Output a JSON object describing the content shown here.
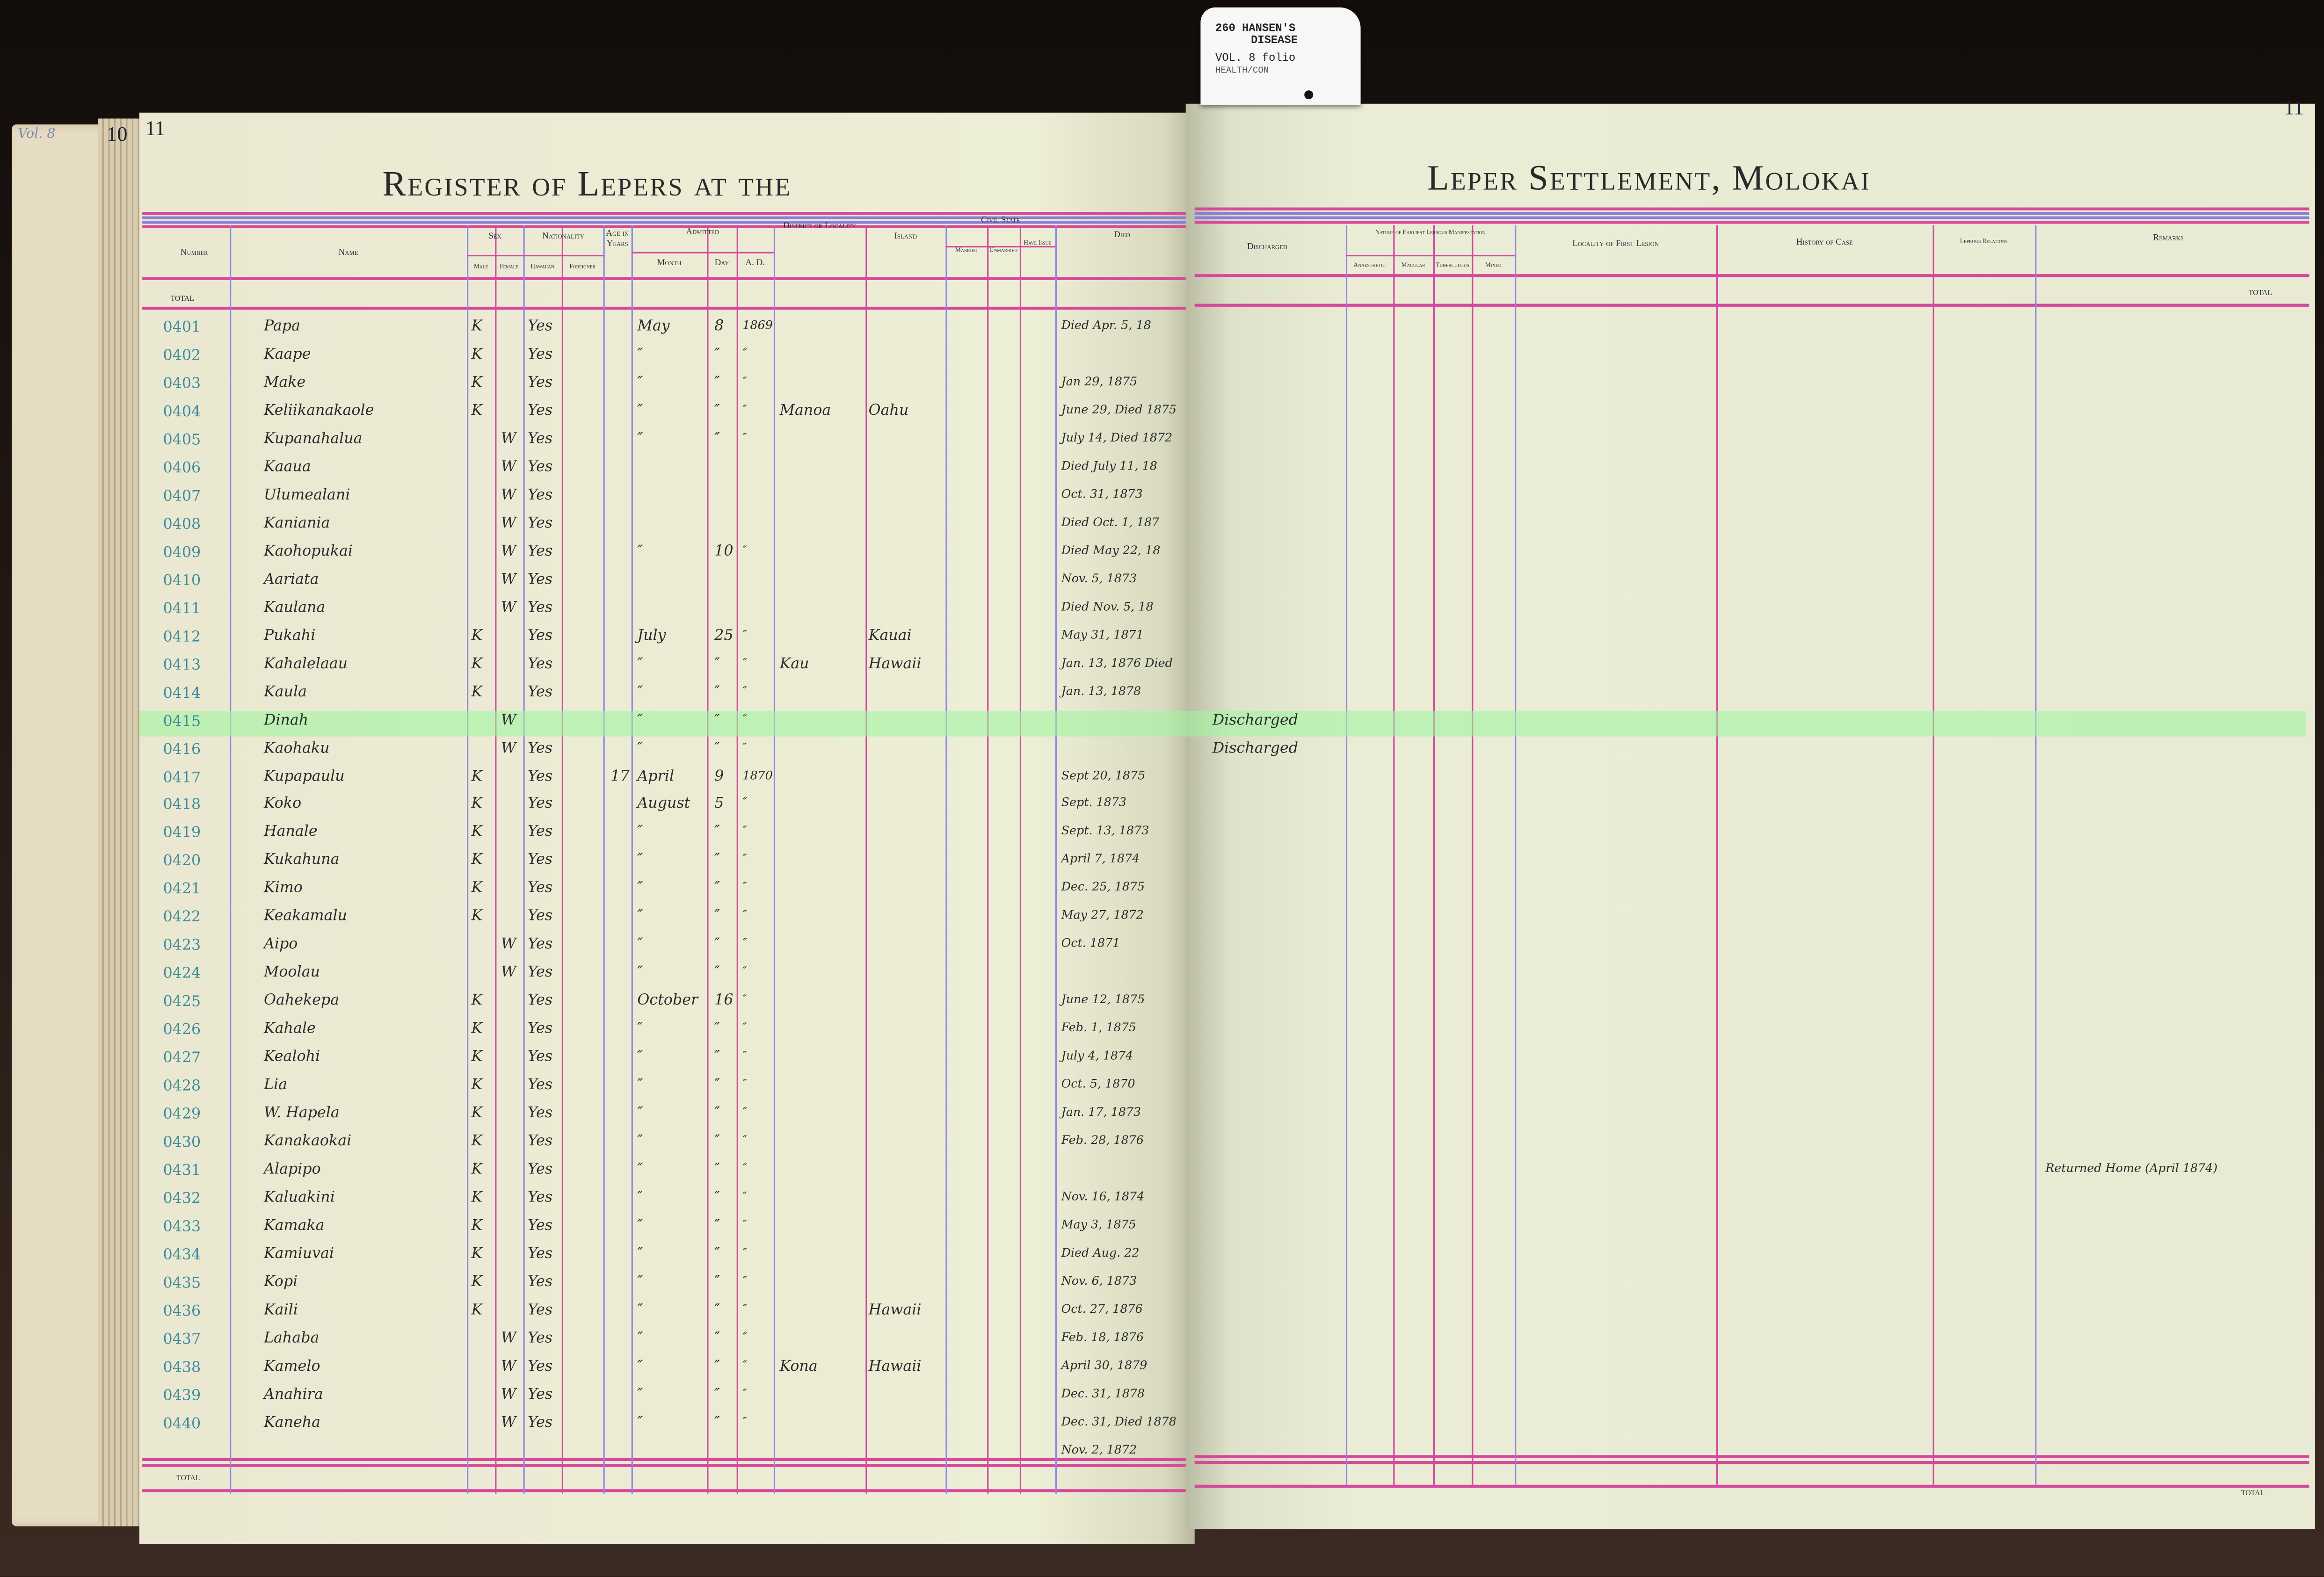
{
  "tag": {
    "line1": "260 HANSEN'S",
    "line2": "DISEASE",
    "line3": "VOL. 8 folio",
    "line4": "HEALTH/CON"
  },
  "volume_note": "Vol. 8",
  "page_numbers": {
    "previous": "10",
    "left": "11",
    "right": "11"
  },
  "titles": {
    "left": "Register of Lepers at the",
    "right": "Leper Settlement, Molokai"
  },
  "headers": {
    "number": "Number",
    "name": "Name",
    "sex": "Sex",
    "male": "Male",
    "female": "Female",
    "nationality": "Nationality",
    "hawaiian": "Hawaiian",
    "foreigner": "Foreigner",
    "age": "Age in Years",
    "admitted": "Admitted",
    "month": "Month",
    "day": "Day",
    "ad": "A. D.",
    "district": "District or Locality",
    "island": "Island",
    "civil_state": "Civil State",
    "married": "Married",
    "unmarried": "Unmarried",
    "have_issue": "Have Issue",
    "died": "Died",
    "discharged": "Discharged",
    "nature": "Nature of Earliest Leprous Manifestation",
    "anaesthetic": "Anaesthetic",
    "macular": "Macular",
    "tuberculous": "Tuberculous",
    "mixed": "Mixed",
    "locality_first_lesion": "Locality of First Lesion",
    "history": "History of Case",
    "leprous_relations": "Leprous Relations",
    "remarks": "Remarks"
  },
  "total_label": "TOTAL",
  "highlight_color": "#a0f5a0",
  "highlighted_row": "0415",
  "rows": [
    {
      "number": "0401",
      "name": "Papa",
      "male": "K",
      "female": "",
      "hawaiian": "Yes",
      "age": "",
      "month": "May",
      "day": "8",
      "ad": "1869",
      "district": "",
      "island": "",
      "died": "Died Apr. 5, 18",
      "discharged": "",
      "remarks": ""
    },
    {
      "number": "0402",
      "name": "Kaape",
      "male": "K",
      "female": "",
      "hawaiian": "Yes",
      "age": "",
      "month": "″",
      "day": "″",
      "ad": "″",
      "district": "",
      "island": "",
      "died": "",
      "discharged": "",
      "remarks": ""
    },
    {
      "number": "0403",
      "name": "Make",
      "male": "K",
      "female": "",
      "hawaiian": "Yes",
      "age": "",
      "month": "″",
      "day": "″",
      "ad": "″",
      "district": "",
      "island": "",
      "died": "Jan 29, 1875",
      "discharged": "",
      "remarks": ""
    },
    {
      "number": "0404",
      "name": "Keliikanakaole",
      "male": "K",
      "female": "",
      "hawaiian": "Yes",
      "age": "",
      "month": "″",
      "day": "″",
      "ad": "″",
      "district": "Manoa",
      "island": "Oahu",
      "died": "June 29, Died 1875",
      "discharged": "",
      "remarks": ""
    },
    {
      "number": "0405",
      "name": "Kupanahalua",
      "male": "",
      "female": "W",
      "hawaiian": "Yes",
      "age": "",
      "month": "″",
      "day": "″",
      "ad": "″",
      "district": "",
      "island": "",
      "died": "July 14, Died 1872",
      "discharged": "",
      "remarks": ""
    },
    {
      "number": "0406",
      "name": "Kaaua",
      "male": "",
      "female": "W",
      "hawaiian": "Yes",
      "age": "",
      "month": "",
      "day": "",
      "ad": "",
      "district": "",
      "island": "",
      "died": "Died July 11, 18",
      "discharged": "",
      "remarks": ""
    },
    {
      "number": "0407",
      "name": "Ulumealani",
      "male": "",
      "female": "W",
      "hawaiian": "Yes",
      "age": "",
      "month": "",
      "day": "",
      "ad": "",
      "district": "",
      "island": "",
      "died": "Oct. 31, 1873",
      "discharged": "",
      "remarks": ""
    },
    {
      "number": "0408",
      "name": "Kaniania",
      "male": "",
      "female": "W",
      "hawaiian": "Yes",
      "age": "",
      "month": "",
      "day": "",
      "ad": "",
      "district": "",
      "island": "",
      "died": "Died Oct. 1, 187",
      "discharged": "",
      "remarks": ""
    },
    {
      "number": "0409",
      "name": "Kaohopukai",
      "male": "",
      "female": "W",
      "hawaiian": "Yes",
      "age": "",
      "month": "″",
      "day": "10",
      "ad": "″",
      "district": "",
      "island": "",
      "died": "Died May 22, 18",
      "discharged": "",
      "remarks": ""
    },
    {
      "number": "0410",
      "name": "Aariata",
      "male": "",
      "female": "W",
      "hawaiian": "Yes",
      "age": "",
      "month": "",
      "day": "",
      "ad": "",
      "district": "",
      "island": "",
      "died": "Nov. 5, 1873",
      "discharged": "",
      "remarks": ""
    },
    {
      "number": "0411",
      "name": "Kaulana",
      "male": "",
      "female": "W",
      "hawaiian": "Yes",
      "age": "",
      "month": "",
      "day": "",
      "ad": "",
      "district": "",
      "island": "",
      "died": "Died Nov. 5, 18",
      "discharged": "",
      "remarks": ""
    },
    {
      "number": "0412",
      "name": "Pukahi",
      "male": "K",
      "female": "",
      "hawaiian": "Yes",
      "age": "",
      "month": "July",
      "day": "25",
      "ad": "″",
      "district": "",
      "island": "Kauai",
      "died": "May 31, 1871",
      "discharged": "",
      "remarks": ""
    },
    {
      "number": "0413",
      "name": "Kahalelaau",
      "male": "K",
      "female": "",
      "hawaiian": "Yes",
      "age": "",
      "month": "″",
      "day": "″",
      "ad": "″",
      "district": "Kau",
      "island": "Hawaii",
      "died": "Jan. 13, 1876 Died",
      "discharged": "",
      "remarks": ""
    },
    {
      "number": "0414",
      "name": "Kaula",
      "male": "K",
      "female": "",
      "hawaiian": "Yes",
      "age": "",
      "month": "″",
      "day": "″",
      "ad": "″",
      "district": "",
      "island": "",
      "died": "Jan. 13, 1878",
      "discharged": "",
      "remarks": ""
    },
    {
      "number": "0415",
      "name": "Dinah",
      "male": "",
      "female": "W",
      "hawaiian": "",
      "age": "",
      "month": "″",
      "day": "″",
      "ad": "″",
      "district": "",
      "island": "",
      "died": "",
      "discharged": "Discharged",
      "remarks": ""
    },
    {
      "number": "0416",
      "name": "Kaohaku",
      "male": "",
      "female": "W",
      "hawaiian": "Yes",
      "age": "",
      "month": "″",
      "day": "″",
      "ad": "″",
      "district": "",
      "island": "",
      "died": "",
      "discharged": "Discharged",
      "remarks": ""
    },
    {
      "number": "0417",
      "name": "Kupapaulu",
      "male": "K",
      "female": "",
      "hawaiian": "Yes",
      "age": "17",
      "month": "April",
      "day": "9",
      "ad": "1870",
      "district": "",
      "island": "",
      "died": "Sept 20, 1875",
      "discharged": "",
      "remarks": ""
    },
    {
      "number": "0418",
      "name": "Koko",
      "male": "K",
      "female": "",
      "hawaiian": "Yes",
      "age": "",
      "month": "August",
      "day": "5",
      "ad": "″",
      "district": "",
      "island": "",
      "died": "Sept. 1873",
      "discharged": "",
      "remarks": ""
    },
    {
      "number": "0419",
      "name": "Hanale",
      "male": "K",
      "female": "",
      "hawaiian": "Yes",
      "age": "",
      "month": "″",
      "day": "″",
      "ad": "″",
      "district": "",
      "island": "",
      "died": "Sept. 13, 1873",
      "discharged": "",
      "remarks": ""
    },
    {
      "number": "0420",
      "name": "Kukahuna",
      "male": "K",
      "female": "",
      "hawaiian": "Yes",
      "age": "",
      "month": "″",
      "day": "″",
      "ad": "″",
      "district": "",
      "island": "",
      "died": "April 7, 1874",
      "discharged": "",
      "remarks": ""
    },
    {
      "number": "0421",
      "name": "Kimo",
      "male": "K",
      "female": "",
      "hawaiian": "Yes",
      "age": "",
      "month": "″",
      "day": "″",
      "ad": "″",
      "district": "",
      "island": "",
      "died": "Dec. 25, 1875",
      "discharged": "",
      "remarks": ""
    },
    {
      "number": "0422",
      "name": "Keakamalu",
      "male": "K",
      "female": "",
      "hawaiian": "Yes",
      "age": "",
      "month": "″",
      "day": "″",
      "ad": "″",
      "district": "",
      "island": "",
      "died": "May 27, 1872",
      "discharged": "",
      "remarks": ""
    },
    {
      "number": "0423",
      "name": "Aipo",
      "male": "",
      "female": "W",
      "hawaiian": "Yes",
      "age": "",
      "month": "″",
      "day": "″",
      "ad": "″",
      "district": "",
      "island": "",
      "died": "Oct. 1871",
      "discharged": "",
      "remarks": ""
    },
    {
      "number": "0424",
      "name": "Moolau",
      "male": "",
      "female": "W",
      "hawaiian": "Yes",
      "age": "",
      "month": "″",
      "day": "″",
      "ad": "″",
      "district": "",
      "island": "",
      "died": "",
      "discharged": "",
      "remarks": ""
    },
    {
      "number": "0425",
      "name": "Oahekepa",
      "male": "K",
      "female": "",
      "hawaiian": "Yes",
      "age": "",
      "month": "October",
      "day": "16",
      "ad": "″",
      "district": "",
      "island": "",
      "died": "June 12, 1875",
      "discharged": "",
      "remarks": ""
    },
    {
      "number": "0426",
      "name": "Kahale",
      "male": "K",
      "female": "",
      "hawaiian": "Yes",
      "age": "",
      "month": "″",
      "day": "″",
      "ad": "″",
      "district": "",
      "island": "",
      "died": "Feb. 1, 1875",
      "discharged": "",
      "remarks": ""
    },
    {
      "number": "0427",
      "name": "Kealohi",
      "male": "K",
      "female": "",
      "hawaiian": "Yes",
      "age": "",
      "month": "″",
      "day": "″",
      "ad": "″",
      "district": "",
      "island": "",
      "died": "July 4, 1874",
      "discharged": "",
      "remarks": ""
    },
    {
      "number": "0428",
      "name": "Lia",
      "male": "K",
      "female": "",
      "hawaiian": "Yes",
      "age": "",
      "month": "″",
      "day": "″",
      "ad": "″",
      "district": "",
      "island": "",
      "died": "Oct. 5, 1870",
      "discharged": "",
      "remarks": ""
    },
    {
      "number": "0429",
      "name": "W. Hapela",
      "male": "K",
      "female": "",
      "hawaiian": "Yes",
      "age": "",
      "month": "″",
      "day": "″",
      "ad": "″",
      "district": "",
      "island": "",
      "died": "Jan. 17, 1873",
      "discharged": "",
      "remarks": ""
    },
    {
      "number": "0430",
      "name": "Kanakaokai",
      "male": "K",
      "female": "",
      "hawaiian": "Yes",
      "age": "",
      "month": "″",
      "day": "″",
      "ad": "″",
      "district": "",
      "island": "",
      "died": "Feb. 28, 1876",
      "discharged": "",
      "remarks": ""
    },
    {
      "number": "0431",
      "name": "Alapipo",
      "male": "K",
      "female": "",
      "hawaiian": "Yes",
      "age": "",
      "month": "″",
      "day": "″",
      "ad": "″",
      "district": "",
      "island": "",
      "died": "",
      "discharged": "",
      "remarks": "Returned Home (April 1874)"
    },
    {
      "number": "0432",
      "name": "Kaluakini",
      "male": "K",
      "female": "",
      "hawaiian": "Yes",
      "age": "",
      "month": "″",
      "day": "″",
      "ad": "″",
      "district": "",
      "island": "",
      "died": "Nov. 16, 1874",
      "discharged": "",
      "remarks": ""
    },
    {
      "number": "0433",
      "name": "Kamaka",
      "male": "K",
      "female": "",
      "hawaiian": "Yes",
      "age": "",
      "month": "″",
      "day": "″",
      "ad": "″",
      "district": "",
      "island": "",
      "died": "May 3, 1875",
      "discharged": "",
      "remarks": ""
    },
    {
      "number": "0434",
      "name": "Kamiuvai",
      "male": "K",
      "female": "",
      "hawaiian": "Yes",
      "age": "",
      "month": "″",
      "day": "″",
      "ad": "″",
      "district": "",
      "island": "",
      "died": "Died Aug. 22",
      "discharged": "",
      "remarks": ""
    },
    {
      "number": "0435",
      "name": "Kopi",
      "male": "K",
      "female": "",
      "hawaiian": "Yes",
      "age": "",
      "month": "″",
      "day": "″",
      "ad": "″",
      "district": "",
      "island": "",
      "died": "Nov. 6, 1873",
      "discharged": "",
      "remarks": ""
    },
    {
      "number": "0436",
      "name": "Kaili",
      "male": "K",
      "female": "",
      "hawaiian": "Yes",
      "age": "",
      "month": "″",
      "day": "″",
      "ad": "″",
      "district": "",
      "island": "Hawaii",
      "died": "Oct. 27, 1876",
      "discharged": "",
      "remarks": ""
    },
    {
      "number": "0437",
      "name": "Lahaba",
      "male": "",
      "female": "W",
      "hawaiian": "Yes",
      "age": "",
      "month": "″",
      "day": "″",
      "ad": "″",
      "district": "",
      "island": "",
      "died": "Feb. 18, 1876",
      "discharged": "",
      "remarks": ""
    },
    {
      "number": "0438",
      "name": "Kamelo",
      "male": "",
      "female": "W",
      "hawaiian": "Yes",
      "age": "",
      "month": "″",
      "day": "″",
      "ad": "″",
      "district": "Kona",
      "island": "Hawaii",
      "died": "April 30, 1879",
      "discharged": "",
      "remarks": ""
    },
    {
      "number": "0439",
      "name": "Anahira",
      "male": "",
      "female": "W",
      "hawaiian": "Yes",
      "age": "",
      "month": "″",
      "day": "″",
      "ad": "″",
      "district": "",
      "island": "",
      "died": "Dec. 31, 1878",
      "discharged": "",
      "remarks": ""
    },
    {
      "number": "0440",
      "name": "Kaneha",
      "male": "",
      "female": "W",
      "hawaiian": "Yes",
      "age": "",
      "month": "″",
      "day": "″",
      "ad": "″",
      "district": "",
      "island": "",
      "died": "Dec. 31, Died 1878",
      "discharged": "",
      "remarks": ""
    }
  ],
  "overflow_died": "Nov. 2, 1872"
}
